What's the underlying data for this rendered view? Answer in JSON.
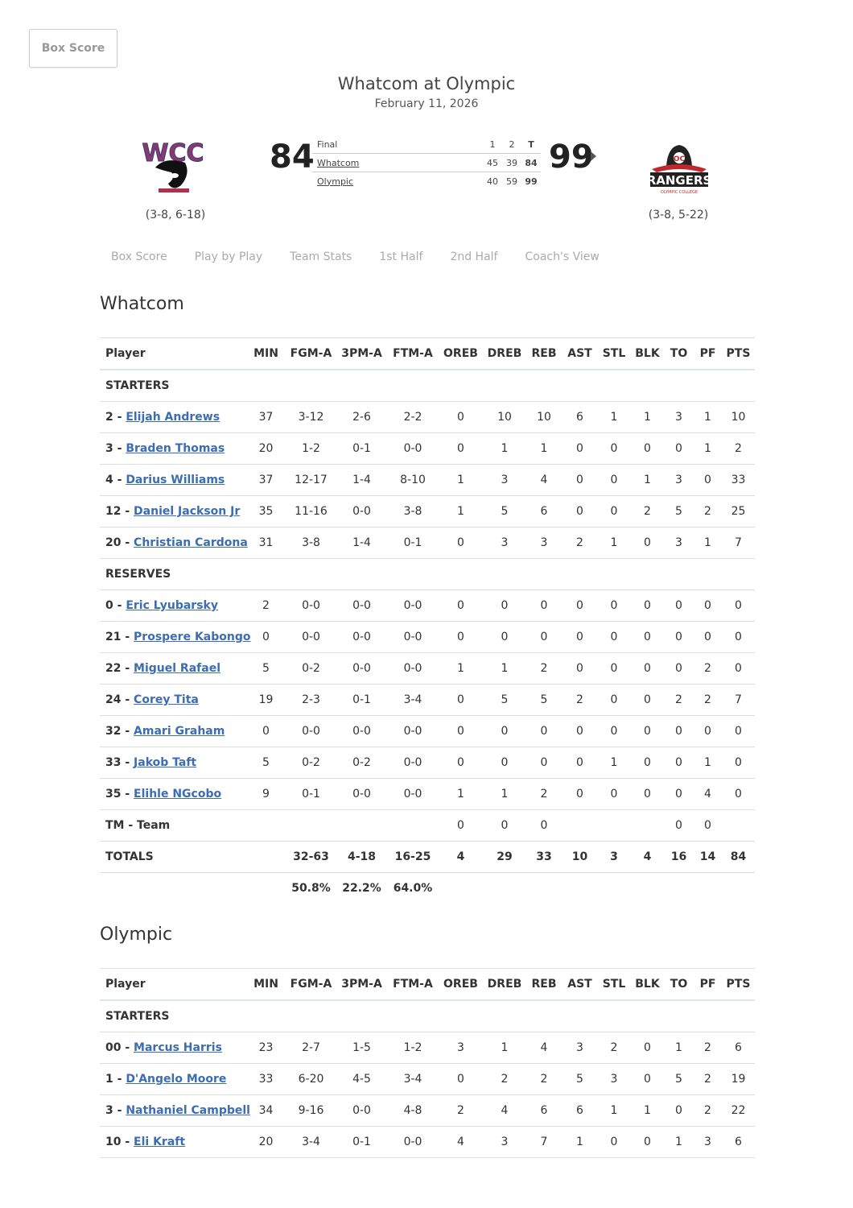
{
  "top_button": "Box Score",
  "header": {
    "title": "Whatcom at Olympic",
    "date": "February 11, 2026"
  },
  "away": {
    "name": "Whatcom",
    "score": "84",
    "record": "(3-8, 6-18)",
    "logo_text": "WCC"
  },
  "home": {
    "name": "Olympic",
    "score": "99",
    "record": "(3-8, 5-22)",
    "logo_text": "RANGERS",
    "logo_sub": "OLYMPIC COLLEGE"
  },
  "linescore": {
    "status": "Final",
    "periods": [
      "1",
      "2",
      "T"
    ],
    "rows": [
      {
        "team": "Whatcom",
        "q": [
          "45",
          "39",
          "84"
        ]
      },
      {
        "team": "Olympic",
        "q": [
          "40",
          "59",
          "99"
        ]
      }
    ]
  },
  "tabs": [
    "Box Score",
    "Play by Play",
    "Team Stats",
    "1st Half",
    "2nd Half",
    "Coach's View"
  ],
  "columns": [
    "Player",
    "MIN",
    "FGM-A",
    "3PM-A",
    "FTM-A",
    "OREB",
    "DREB",
    "REB",
    "AST",
    "STL",
    "BLK",
    "TO",
    "PF",
    "PTS"
  ],
  "colors": {
    "link": "#3b6cb4",
    "text": "#333333",
    "tab": "#aaaaaa"
  },
  "boxes": [
    {
      "team": "Whatcom",
      "rows": [
        {
          "section": "STARTERS"
        },
        {
          "num": "2",
          "name": "Elijah Andrews",
          "stats": [
            "37",
            "3-12",
            "2-6",
            "2-2",
            "0",
            "10",
            "10",
            "6",
            "1",
            "1",
            "3",
            "1",
            "10"
          ]
        },
        {
          "num": "3",
          "name": "Braden Thomas",
          "stats": [
            "20",
            "1-2",
            "0-1",
            "0-0",
            "0",
            "1",
            "1",
            "0",
            "0",
            "0",
            "0",
            "1",
            "2"
          ]
        },
        {
          "num": "4",
          "name": "Darius Williams",
          "stats": [
            "37",
            "12-17",
            "1-4",
            "8-10",
            "1",
            "3",
            "4",
            "0",
            "0",
            "1",
            "3",
            "0",
            "33"
          ]
        },
        {
          "num": "12",
          "name": "Daniel Jackson Jr",
          "stats": [
            "35",
            "11-16",
            "0-0",
            "3-8",
            "1",
            "5",
            "6",
            "0",
            "0",
            "2",
            "5",
            "2",
            "25"
          ]
        },
        {
          "num": "20",
          "name": "Christian Cardona",
          "stats": [
            "31",
            "3-8",
            "1-4",
            "0-1",
            "0",
            "3",
            "3",
            "2",
            "1",
            "0",
            "3",
            "1",
            "7"
          ]
        },
        {
          "section": "RESERVES"
        },
        {
          "num": "0",
          "name": "Eric Lyubarsky",
          "stats": [
            "2",
            "0-0",
            "0-0",
            "0-0",
            "0",
            "0",
            "0",
            "0",
            "0",
            "0",
            "0",
            "0",
            "0"
          ]
        },
        {
          "num": "21",
          "name": "Prospere Kabongo",
          "stats": [
            "0",
            "0-0",
            "0-0",
            "0-0",
            "0",
            "0",
            "0",
            "0",
            "0",
            "0",
            "0",
            "0",
            "0"
          ]
        },
        {
          "num": "22",
          "name": "Miguel Rafael",
          "stats": [
            "5",
            "0-2",
            "0-0",
            "0-0",
            "1",
            "1",
            "2",
            "0",
            "0",
            "0",
            "0",
            "2",
            "0"
          ]
        },
        {
          "num": "24",
          "name": "Corey Tita",
          "stats": [
            "19",
            "2-3",
            "0-1",
            "3-4",
            "0",
            "5",
            "5",
            "2",
            "0",
            "0",
            "2",
            "2",
            "7"
          ]
        },
        {
          "num": "32",
          "name": "Amari Graham",
          "stats": [
            "0",
            "0-0",
            "0-0",
            "0-0",
            "0",
            "0",
            "0",
            "0",
            "0",
            "0",
            "0",
            "0",
            "0"
          ]
        },
        {
          "num": "33",
          "name": "Jakob Taft",
          "stats": [
            "5",
            "0-2",
            "0-2",
            "0-0",
            "0",
            "0",
            "0",
            "0",
            "1",
            "0",
            "0",
            "1",
            "0"
          ]
        },
        {
          "num": "35",
          "name": "Elihle NGcobo",
          "stats": [
            "9",
            "0-1",
            "0-0",
            "0-0",
            "1",
            "1",
            "2",
            "0",
            "0",
            "0",
            "0",
            "4",
            "0"
          ]
        },
        {
          "label": "TM - Team",
          "stats": [
            "",
            "",
            "",
            "",
            "0",
            "0",
            "0",
            "",
            "",
            "",
            "0",
            "0",
            ""
          ]
        },
        {
          "label": "TOTALS",
          "total": true,
          "stats": [
            "",
            "32-63",
            "4-18",
            "16-25",
            "4",
            "29",
            "33",
            "10",
            "3",
            "4",
            "16",
            "14",
            "84"
          ]
        },
        {
          "label": "",
          "pct": true,
          "stats": [
            "",
            "50.8%",
            "22.2%",
            "64.0%",
            "",
            "",
            "",
            "",
            "",
            "",
            "",
            "",
            ""
          ]
        }
      ]
    },
    {
      "team": "Olympic",
      "rows": [
        {
          "section": "STARTERS"
        },
        {
          "num": "00",
          "name": "Marcus Harris",
          "stats": [
            "23",
            "2-7",
            "1-5",
            "1-2",
            "3",
            "1",
            "4",
            "3",
            "2",
            "0",
            "1",
            "2",
            "6"
          ]
        },
        {
          "num": "1",
          "name": "D'Angelo Moore",
          "stats": [
            "33",
            "6-20",
            "4-5",
            "3-4",
            "0",
            "2",
            "2",
            "5",
            "3",
            "0",
            "5",
            "2",
            "19"
          ]
        },
        {
          "num": "3",
          "name": "Nathaniel Campbell",
          "stats": [
            "34",
            "9-16",
            "0-0",
            "4-8",
            "2",
            "4",
            "6",
            "6",
            "1",
            "1",
            "0",
            "2",
            "22"
          ]
        },
        {
          "num": "10",
          "name": "Eli Kraft",
          "stats": [
            "20",
            "3-4",
            "0-1",
            "0-0",
            "4",
            "3",
            "7",
            "1",
            "0",
            "0",
            "1",
            "3",
            "6"
          ]
        }
      ]
    }
  ]
}
